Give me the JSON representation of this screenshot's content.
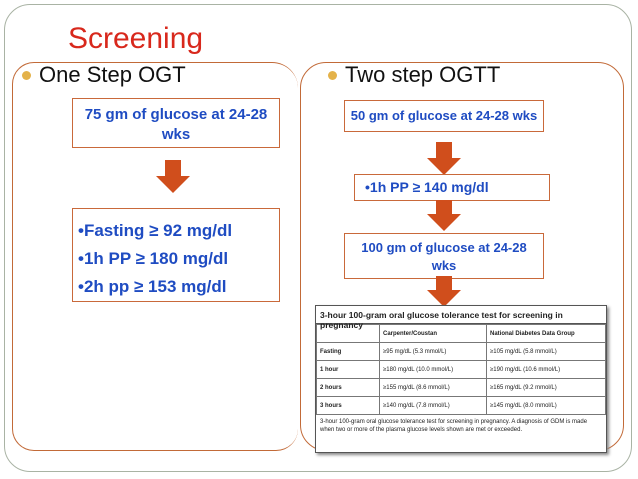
{
  "slide": {
    "title": "Screening",
    "left": {
      "heading": "One Step OGT",
      "box1": "75 gm of glucose at 24-28 wks",
      "criteria": [
        "•Fasting  ≥ 92 mg/dl",
        "•1h PP ≥ 180 mg/dl",
        "•2h pp ≥ 153 mg/dl"
      ]
    },
    "right": {
      "heading": "Two step OGTT",
      "box1": "50 gm of glucose at 24-28 wks",
      "box2": "•1h PP ≥ 140 mg/dl",
      "box3": "100 gm of glucose at 24-28 wks"
    },
    "table": {
      "title": "3-hour 100-gram oral glucose tolerance test for screening in pregnancy",
      "headers": [
        "",
        "Carpenter/Coustan",
        "National Diabetes Data Group"
      ],
      "rows": [
        [
          "Fasting",
          "≥95 mg/dL (5.3 mmol/L)",
          "≥105 mg/dL (5.8 mmol/L)"
        ],
        [
          "1 hour",
          "≥180 mg/dL (10.0 mmol/L)",
          "≥190 mg/dL (10.6 mmol/L)"
        ],
        [
          "2 hours",
          "≥155 mg/dL (8.6 mmol/L)",
          "≥165 mg/dL (9.2 mmol/L)"
        ],
        [
          "3 hours",
          "≥140 mg/dL (7.8 mmol/L)",
          "≥145 mg/dL (8.0 mmol/L)"
        ]
      ],
      "note": "3-hour 100-gram oral glucose tolerance test for screening in pregnancy. A diagnosis of GDM is made when two or more of the plasma glucose levels shown are met or exceeded."
    },
    "colors": {
      "title": "#d8281c",
      "box_text": "#1f4cc2",
      "arrow": "#d04e1c",
      "bullet": "#e4b24a"
    }
  }
}
